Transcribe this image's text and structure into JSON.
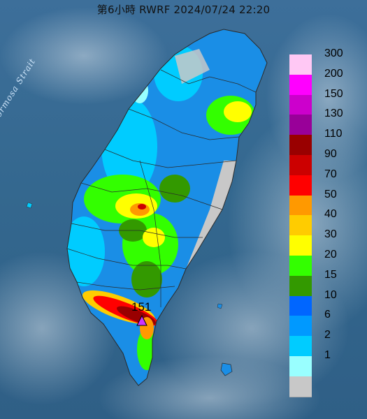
{
  "map": {
    "title": "第6小時  RWRF 2024/07/24 22:20",
    "sea_label": "Formosa Strait",
    "peak_value": "151",
    "peak_marker_icon": "triangle-marker-icon"
  },
  "legend": [
    {
      "label": "300",
      "color": "#ffc8f4"
    },
    {
      "label": "200",
      "color": "#ff00ff"
    },
    {
      "label": "150",
      "color": "#cc00cc"
    },
    {
      "label": "130",
      "color": "#990099"
    },
    {
      "label": "110",
      "color": "#990000"
    },
    {
      "label": "90",
      "color": "#cc0000"
    },
    {
      "label": "70",
      "color": "#ff0000"
    },
    {
      "label": "50",
      "color": "#ff9900"
    },
    {
      "label": "40",
      "color": "#ffcc00"
    },
    {
      "label": "30",
      "color": "#ffff00"
    },
    {
      "label": "20",
      "color": "#33ff00"
    },
    {
      "label": "15",
      "color": "#339900"
    },
    {
      "label": "10",
      "color": "#0066ff"
    },
    {
      "label": "6",
      "color": "#0099ff"
    },
    {
      "label": "2",
      "color": "#00ccff"
    },
    {
      "label": "1",
      "color": "#99ffff"
    },
    {
      "label": "",
      "color": "#c8c8c8"
    }
  ]
}
